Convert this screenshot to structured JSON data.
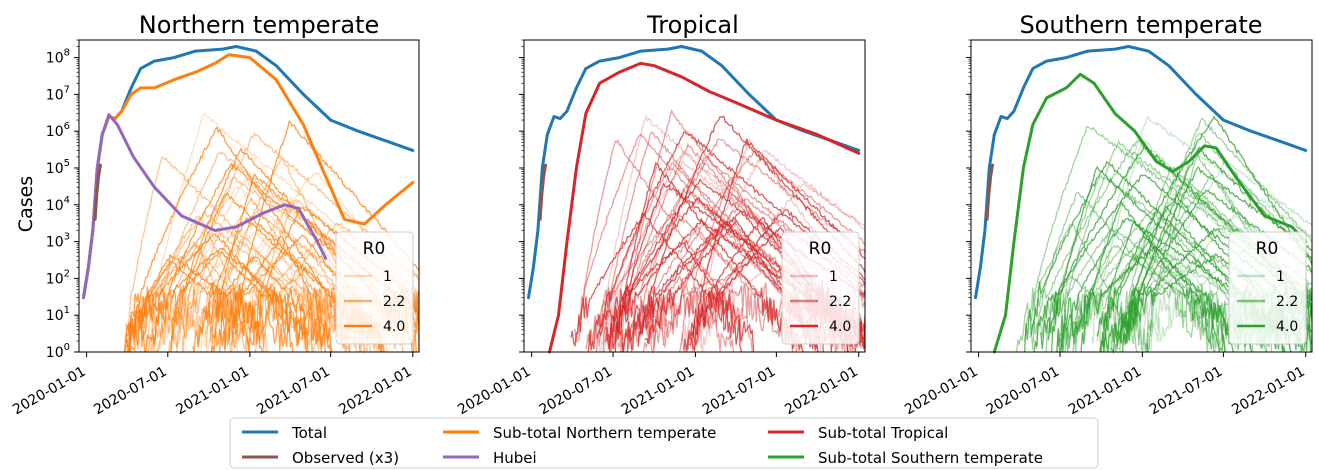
{
  "chart_data": [
    {
      "type": "line",
      "title": "Northern temperate",
      "ylabel": "Cases",
      "yscale": "log",
      "ylim": [
        1,
        300000000
      ],
      "xlim": [
        "2019-12-15",
        "2022-01-15"
      ],
      "x_ticks": [
        "2020-01-01",
        "2020-07-01",
        "2021-01-01",
        "2021-07-01",
        "2022-01-01"
      ],
      "y_ticks": [
        "10^0",
        "10^1",
        "10^2",
        "10^3",
        "10^4",
        "10^5",
        "10^6",
        "10^7",
        "10^8"
      ],
      "inset_legend": {
        "title": "R0",
        "placement": "lower right",
        "entries": [
          "1",
          "2.2",
          "4.0"
        ]
      },
      "series": [
        {
          "name": "Total",
          "color": "#1f77b4",
          "points": [
            [
              "2019-12-25",
              30
            ],
            [
              "2020-01-05",
              200
            ],
            [
              "2020-01-15",
              2000
            ],
            [
              "2020-01-25",
              100000
            ],
            [
              "2020-02-05",
              800000
            ],
            [
              "2020-02-20",
              2500000
            ],
            [
              "2020-03-05",
              2200000
            ],
            [
              "2020-03-20",
              3500000
            ],
            [
              "2020-04-10",
              15000000
            ],
            [
              "2020-05-01",
              50000000
            ],
            [
              "2020-06-01",
              80000000
            ],
            [
              "2020-07-15",
              100000000
            ],
            [
              "2020-09-01",
              150000000
            ],
            [
              "2020-11-01",
              170000000
            ],
            [
              "2020-12-01",
              200000000
            ],
            [
              "2021-01-15",
              150000000
            ],
            [
              "2021-03-01",
              60000000
            ],
            [
              "2021-05-01",
              10000000
            ],
            [
              "2021-07-01",
              2000000
            ],
            [
              "2021-09-01",
              1000000
            ],
            [
              "2021-11-01",
              550000
            ],
            [
              "2022-01-01",
              300000
            ]
          ]
        },
        {
          "name": "Sub-total Northern temperate",
          "color": "#ff7f0e",
          "points": [
            [
              "2019-12-25",
              30
            ],
            [
              "2020-01-05",
              200
            ],
            [
              "2020-01-15",
              2000
            ],
            [
              "2020-01-25",
              100000
            ],
            [
              "2020-02-05",
              800000
            ],
            [
              "2020-02-20",
              2500000
            ],
            [
              "2020-03-05",
              2200000
            ],
            [
              "2020-03-20",
              3500000
            ],
            [
              "2020-04-10",
              10000000
            ],
            [
              "2020-05-01",
              15000000
            ],
            [
              "2020-06-01",
              15000000
            ],
            [
              "2020-07-15",
              25000000
            ],
            [
              "2020-09-01",
              40000000
            ],
            [
              "2020-10-15",
              70000000
            ],
            [
              "2020-11-15",
              120000000
            ],
            [
              "2021-01-01",
              100000000
            ],
            [
              "2021-03-01",
              25000000
            ],
            [
              "2021-05-01",
              1500000
            ],
            [
              "2021-06-15",
              80000
            ],
            [
              "2021-08-01",
              4000
            ],
            [
              "2021-09-15",
              3000
            ],
            [
              "2021-11-01",
              10000
            ],
            [
              "2022-01-01",
              40000
            ]
          ]
        },
        {
          "name": "Hubei",
          "color": "#9467bd",
          "points": [
            [
              "2019-12-25",
              30
            ],
            [
              "2020-01-05",
              200
            ],
            [
              "2020-01-15",
              2000
            ],
            [
              "2020-01-25",
              100000
            ],
            [
              "2020-02-05",
              800000
            ],
            [
              "2020-02-20",
              2800000
            ],
            [
              "2020-03-10",
              1500000
            ],
            [
              "2020-04-15",
              200000
            ],
            [
              "2020-06-01",
              30000
            ],
            [
              "2020-08-01",
              5000
            ],
            [
              "2020-10-15",
              2000
            ],
            [
              "2020-12-01",
              2500
            ],
            [
              "2021-02-01",
              6000
            ],
            [
              "2021-03-20",
              10000
            ],
            [
              "2021-04-20",
              8000
            ],
            [
              "2021-06-01",
              1000
            ],
            [
              "2021-06-20",
              350
            ]
          ]
        },
        {
          "name": "Observed (x3)",
          "color": "#8c564b",
          "points": [
            [
              "2020-01-20",
              4000
            ],
            [
              "2020-01-24",
              20000
            ],
            [
              "2020-01-28",
              60000
            ],
            [
              "2020-02-01",
              120000
            ]
          ]
        }
      ]
    },
    {
      "type": "line",
      "title": "Tropical",
      "yscale": "log",
      "ylim": [
        1,
        300000000
      ],
      "xlim": [
        "2019-12-15",
        "2022-01-15"
      ],
      "x_ticks": [
        "2020-01-01",
        "2020-07-01",
        "2021-01-01",
        "2021-07-01",
        "2022-01-01"
      ],
      "inset_legend": {
        "title": "R0",
        "placement": "lower right",
        "entries": [
          "1",
          "2.2",
          "4.0"
        ]
      },
      "series": [
        {
          "name": "Total",
          "color": "#1f77b4",
          "points": [
            [
              "2019-12-25",
              30
            ],
            [
              "2020-01-05",
              200
            ],
            [
              "2020-01-15",
              2000
            ],
            [
              "2020-01-25",
              100000
            ],
            [
              "2020-02-05",
              800000
            ],
            [
              "2020-02-20",
              2500000
            ],
            [
              "2020-03-05",
              2200000
            ],
            [
              "2020-03-20",
              3500000
            ],
            [
              "2020-04-10",
              15000000
            ],
            [
              "2020-05-01",
              50000000
            ],
            [
              "2020-06-01",
              80000000
            ],
            [
              "2020-07-15",
              100000000
            ],
            [
              "2020-09-01",
              150000000
            ],
            [
              "2020-11-01",
              170000000
            ],
            [
              "2020-12-01",
              200000000
            ],
            [
              "2021-01-15",
              150000000
            ],
            [
              "2021-03-01",
              60000000
            ],
            [
              "2021-05-01",
              10000000
            ],
            [
              "2021-07-01",
              2000000
            ],
            [
              "2021-09-01",
              1000000
            ],
            [
              "2021-11-01",
              550000
            ],
            [
              "2022-01-01",
              300000
            ]
          ]
        },
        {
          "name": "Sub-total Tropical",
          "color": "#d62728",
          "points": [
            [
              "2020-02-10",
              1
            ],
            [
              "2020-03-01",
              10
            ],
            [
              "2020-03-20",
              1000
            ],
            [
              "2020-04-10",
              100000
            ],
            [
              "2020-05-01",
              3000000
            ],
            [
              "2020-06-01",
              20000000
            ],
            [
              "2020-07-15",
              40000000
            ],
            [
              "2020-09-01",
              70000000
            ],
            [
              "2020-10-01",
              60000000
            ],
            [
              "2020-12-01",
              30000000
            ],
            [
              "2021-02-01",
              12000000
            ],
            [
              "2021-04-01",
              6000000
            ],
            [
              "2021-07-01",
              2000000
            ],
            [
              "2021-10-01",
              800000
            ],
            [
              "2022-01-01",
              250000
            ]
          ]
        },
        {
          "name": "Observed (x3)",
          "color": "#8c564b",
          "points": [
            [
              "2020-01-20",
              4000
            ],
            [
              "2020-01-24",
              20000
            ],
            [
              "2020-01-28",
              60000
            ],
            [
              "2020-02-01",
              120000
            ]
          ]
        }
      ]
    },
    {
      "type": "line",
      "title": "Southern temperate",
      "yscale": "log",
      "ylim": [
        1,
        300000000
      ],
      "xlim": [
        "2019-12-15",
        "2022-01-15"
      ],
      "x_ticks": [
        "2020-01-01",
        "2020-07-01",
        "2021-01-01",
        "2021-07-01",
        "2022-01-01"
      ],
      "inset_legend": {
        "title": "R0",
        "placement": "lower right",
        "entries": [
          "1",
          "2.2",
          "4.0"
        ]
      },
      "series": [
        {
          "name": "Total",
          "color": "#1f77b4",
          "points": [
            [
              "2019-12-25",
              30
            ],
            [
              "2020-01-05",
              200
            ],
            [
              "2020-01-15",
              2000
            ],
            [
              "2020-01-25",
              100000
            ],
            [
              "2020-02-05",
              800000
            ],
            [
              "2020-02-20",
              2500000
            ],
            [
              "2020-03-05",
              2200000
            ],
            [
              "2020-03-20",
              3500000
            ],
            [
              "2020-04-10",
              15000000
            ],
            [
              "2020-05-01",
              50000000
            ],
            [
              "2020-06-01",
              80000000
            ],
            [
              "2020-07-15",
              100000000
            ],
            [
              "2020-09-01",
              150000000
            ],
            [
              "2020-11-01",
              170000000
            ],
            [
              "2020-12-01",
              200000000
            ],
            [
              "2021-01-15",
              150000000
            ],
            [
              "2021-03-01",
              60000000
            ],
            [
              "2021-05-01",
              10000000
            ],
            [
              "2021-07-01",
              2000000
            ],
            [
              "2021-09-01",
              1000000
            ],
            [
              "2021-11-01",
              550000
            ],
            [
              "2022-01-01",
              300000
            ]
          ]
        },
        {
          "name": "Sub-total Southern temperate",
          "color": "#2ca02c",
          "points": [
            [
              "2020-02-05",
              1
            ],
            [
              "2020-03-01",
              10
            ],
            [
              "2020-03-20",
              1000
            ],
            [
              "2020-04-10",
              100000
            ],
            [
              "2020-05-01",
              1500000
            ],
            [
              "2020-06-01",
              8000000
            ],
            [
              "2020-07-15",
              15000000
            ],
            [
              "2020-08-15",
              35000000
            ],
            [
              "2020-09-15",
              20000000
            ],
            [
              "2020-11-01",
              3000000
            ],
            [
              "2020-12-15",
              1000000
            ],
            [
              "2021-02-01",
              150000
            ],
            [
              "2021-03-10",
              80000
            ],
            [
              "2021-04-15",
              150000
            ],
            [
              "2021-05-20",
              400000
            ],
            [
              "2021-06-15",
              350000
            ],
            [
              "2021-08-01",
              50000
            ],
            [
              "2021-10-01",
              5000
            ],
            [
              "2021-12-01",
              2500
            ],
            [
              "2022-01-01",
              1000
            ]
          ]
        },
        {
          "name": "Observed (x3)",
          "color": "#8c564b",
          "points": [
            [
              "2020-01-20",
              4000
            ],
            [
              "2020-01-24",
              20000
            ],
            [
              "2020-01-28",
              60000
            ],
            [
              "2020-02-01",
              120000
            ]
          ]
        }
      ]
    }
  ],
  "legend": {
    "placement": "bottom-center",
    "entries": [
      {
        "label": "Total",
        "color": "#1f77b4"
      },
      {
        "label": "Observed (x3)",
        "color": "#8c564b"
      },
      {
        "label": "Sub-total Northern temperate",
        "color": "#ff7f0e"
      },
      {
        "label": "Hubei",
        "color": "#9467bd"
      },
      {
        "label": "Sub-total Tropical",
        "color": "#d62728"
      },
      {
        "label": "Sub-total Southern temperate",
        "color": "#2ca02c"
      }
    ]
  }
}
